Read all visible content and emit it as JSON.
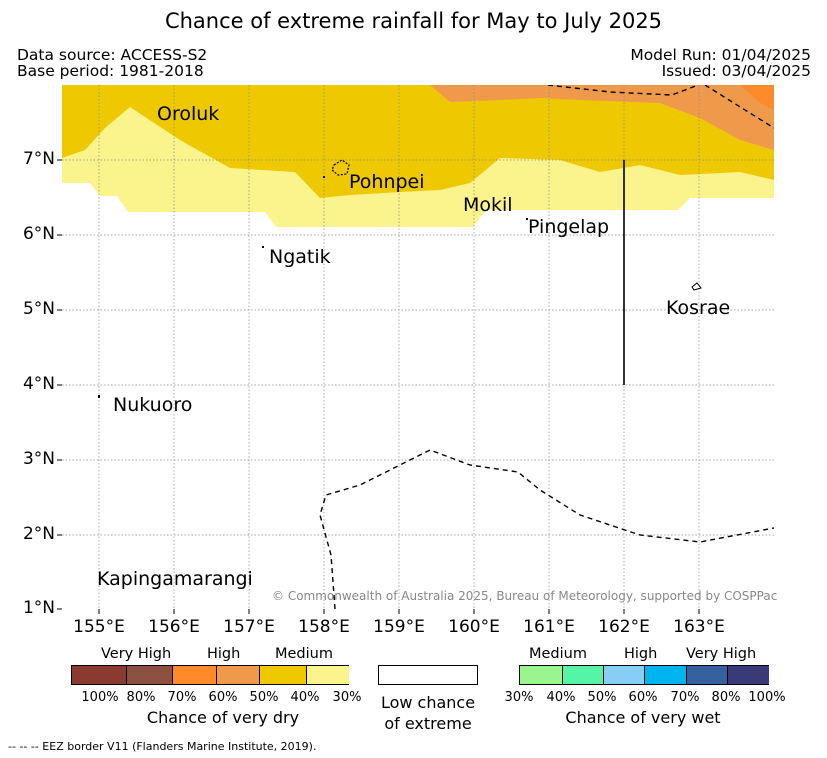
{
  "title": "Chance of extreme rainfall for May to July 2025",
  "header": {
    "data_source": "Data source: ACCESS-S2",
    "base_period": "Base period: 1981-2018",
    "model_run": "Model Run: 01/04/2025",
    "issued": "Issued: 03/04/2025"
  },
  "map": {
    "lon_ticks": [
      "155°E",
      "156°E",
      "157°E",
      "158°E",
      "159°E",
      "160°E",
      "161°E",
      "162°E",
      "163°E"
    ],
    "lat_ticks": [
      "7°N",
      "6°N",
      "5°N",
      "4°N",
      "3°N",
      "2°N",
      "1°N"
    ],
    "places": {
      "oroluk": "Oroluk",
      "pohnpei": "Pohnpei",
      "mokil": "Mokil",
      "pingelap": "Pingelap",
      "ngatik": "Ngatik",
      "kosrae": "Kosrae",
      "nukuoro": "Nukuoro",
      "kapingamarangi": "Kapingamarangi"
    },
    "copyright": "© Commonwealth of Australia 2025, Bureau of Meteorology, supported by COSPPac"
  },
  "legend": {
    "dry": {
      "categories": [
        "Very High",
        "High",
        "Medium"
      ],
      "percents": [
        "100%",
        "80%",
        "70%",
        "60%",
        "50%",
        "40%",
        "30%"
      ],
      "colors": [
        "#8b3a2f",
        "#8b5040",
        "#ff8a2a",
        "#ee9a4a",
        "#eec800",
        "#fbf38c"
      ],
      "title": "Chance of very dry"
    },
    "low": {
      "line1": "Low chance",
      "line2": "of extreme"
    },
    "wet": {
      "categories": [
        "Medium",
        "High",
        "Very High"
      ],
      "percents": [
        "30%",
        "40%",
        "50%",
        "60%",
        "70%",
        "80%",
        "100%"
      ],
      "colors": [
        "#9af58e",
        "#55f5a5",
        "#88cdf5",
        "#00b4ee",
        "#36609e",
        "#3a3a78"
      ],
      "title": "Chance of very wet"
    }
  },
  "footer": "-- -- -- EEZ border V11 (Flanders Marine Institute, 2019)."
}
